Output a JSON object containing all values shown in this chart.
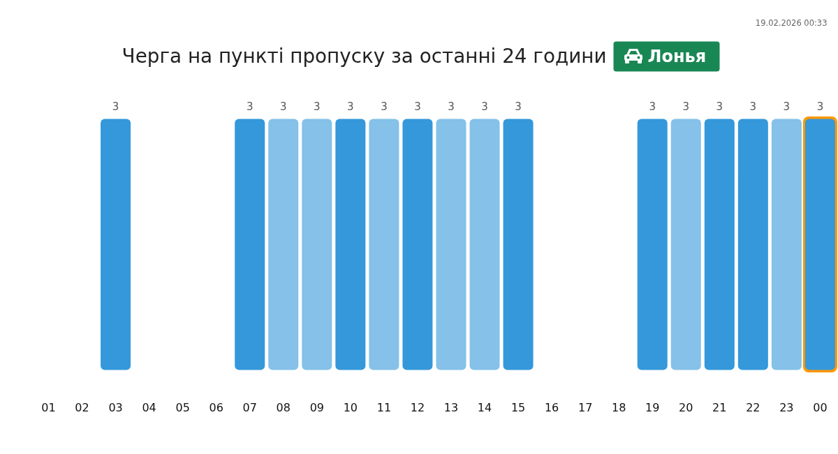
{
  "chart_data": {
    "type": "bar",
    "title": "Черга на пункті пропуску за останні 24 години",
    "subtitle": "Лонья",
    "categories": [
      "01",
      "02",
      "03",
      "04",
      "05",
      "06",
      "07",
      "08",
      "09",
      "10",
      "11",
      "12",
      "13",
      "14",
      "15",
      "16",
      "17",
      "18",
      "19",
      "20",
      "21",
      "22",
      "23",
      "00"
    ],
    "values": [
      null,
      null,
      3,
      null,
      null,
      null,
      3,
      3,
      3,
      3,
      3,
      3,
      3,
      3,
      3,
      null,
      null,
      null,
      3,
      3,
      3,
      3,
      3,
      3
    ],
    "colors": [
      null,
      null,
      "#3498db",
      null,
      null,
      null,
      "#3498db",
      "#85c1e9",
      "#85c1e9",
      "#3498db",
      "#85c1e9",
      "#3498db",
      "#85c1e9",
      "#85c1e9",
      "#3498db",
      null,
      null,
      null,
      "#3498db",
      "#85c1e9",
      "#3498db",
      "#3498db",
      "#85c1e9",
      "#3498db"
    ],
    "data_labels": true,
    "bands": [
      {
        "axis": "x",
        "from": "00",
        "to": "00",
        "color": "#ff9800"
      }
    ],
    "annotations": [
      "19.02.2026 00:33"
    ]
  }
}
